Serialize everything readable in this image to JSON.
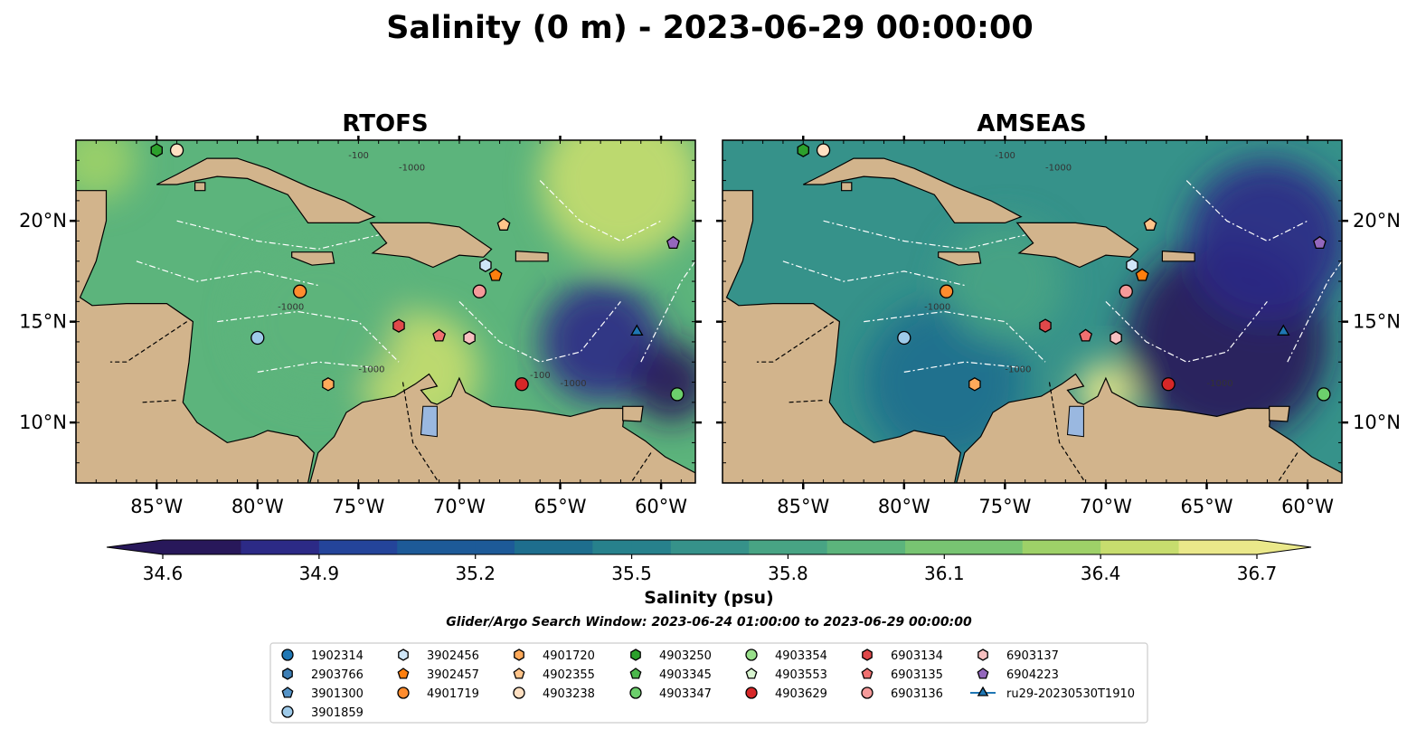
{
  "figure": {
    "title": "Salinity (0 m) - 2023-06-29 00:00:00",
    "search_window": "Glider/Argo Search Window: 2023-06-24 01:00:00 to 2023-06-29 00:00:00"
  },
  "colors": {
    "land": "#d2b48c",
    "water_bg": "#9ab8e0",
    "river": "#9fb0c8",
    "ramp": [
      "#28185a",
      "#2c2a86",
      "#24449a",
      "#1d5a98",
      "#1e6e8e",
      "#27818c",
      "#36928a",
      "#48a484",
      "#5cb47c",
      "#78c472",
      "#9ed168",
      "#c7dd6e",
      "#eae88a"
    ]
  },
  "chart_data": [
    {
      "type": "heatmap",
      "title": "RTOFS",
      "xlim": [
        -89,
        -58.3
      ],
      "ylim": [
        7,
        24
      ],
      "xticks": [
        -85,
        -80,
        -75,
        -70,
        -65,
        -60
      ],
      "xtick_labels": [
        "85°W",
        "80°W",
        "75°W",
        "70°W",
        "65°W",
        "60°W"
      ],
      "yticks": [
        10,
        15,
        20
      ],
      "ytick_labels": [
        "10°N",
        "15°N",
        "20°N"
      ],
      "ytick_side": "left",
      "contour_labels": [
        "-100",
        "-1000",
        "-1000",
        "-1000",
        "-1000",
        "-100"
      ],
      "field_features": [
        {
          "lon": -88,
          "lat": 23,
          "r": 2.0,
          "value": 36.3
        },
        {
          "lon": -62,
          "lat": 22,
          "r": 4.0,
          "value": 36.5
        },
        {
          "lon": -72,
          "lat": 12.5,
          "r": 3.0,
          "value": 36.5
        },
        {
          "lon": -63,
          "lat": 14,
          "r": 3.0,
          "value": 34.9
        },
        {
          "lon": -59.5,
          "lat": 12,
          "r": 2.0,
          "value": 34.7
        },
        {
          "lon": -77,
          "lat": 15,
          "r": 4.0,
          "value": 36.0
        }
      ],
      "field_base": 35.9
    },
    {
      "type": "heatmap",
      "title": "AMSEAS",
      "xlim": [
        -89,
        -58.3
      ],
      "ylim": [
        7,
        24
      ],
      "xticks": [
        -85,
        -80,
        -75,
        -70,
        -65,
        -60
      ],
      "xtick_labels": [
        "85°W",
        "80°W",
        "75°W",
        "70°W",
        "65°W",
        "60°W"
      ],
      "yticks": [
        10,
        15,
        20
      ],
      "ytick_labels": [
        "10°N",
        "15°N",
        "20°N"
      ],
      "ytick_side": "right",
      "contour_labels": [
        "-100",
        "-1000",
        "-1000",
        "-1000",
        "-1000"
      ],
      "field_features": [
        {
          "lon": -64,
          "lat": 14,
          "r": 5.0,
          "value": 34.6
        },
        {
          "lon": -62,
          "lat": 19,
          "r": 4.0,
          "value": 34.9
        },
        {
          "lon": -78,
          "lat": 12,
          "r": 4.0,
          "value": 35.3
        },
        {
          "lon": -70,
          "lat": 11.5,
          "r": 1.5,
          "value": 36.6
        },
        {
          "lon": -75,
          "lat": 17,
          "r": 3.0,
          "value": 35.8
        }
      ],
      "field_base": 35.6
    }
  ],
  "colorbar": {
    "label": "Salinity (psu)",
    "min": 34.6,
    "max": 36.7,
    "ticks": [
      34.6,
      34.9,
      35.2,
      35.5,
      35.8,
      36.1,
      36.4,
      36.7
    ],
    "tick_labels": [
      "34.6",
      "34.9",
      "35.2",
      "35.5",
      "35.8",
      "36.1",
      "36.4",
      "36.7"
    ],
    "extend": "both"
  },
  "legend": {
    "placement": "bottom-center",
    "columns": 7,
    "entries": [
      {
        "label": "1902314",
        "marker": "circle",
        "color": "#1f77b4",
        "lon": null,
        "lat": null
      },
      {
        "label": "2903766",
        "marker": "hexagon",
        "color": "#3d7fb6",
        "lon": null,
        "lat": null
      },
      {
        "label": "3901300",
        "marker": "pentagon",
        "color": "#5594c8",
        "lon": null,
        "lat": null
      },
      {
        "label": "3901859",
        "marker": "circle",
        "color": "#9ecae9",
        "lon": -80,
        "lat": 14.2
      },
      {
        "label": "3902456",
        "marker": "hexagon",
        "color": "#cfe6f8",
        "lon": -68.7,
        "lat": 17.8
      },
      {
        "label": "3902457",
        "marker": "pentagon",
        "color": "#ff7f0e",
        "lon": -68.2,
        "lat": 17.3
      },
      {
        "label": "4901719",
        "marker": "circle",
        "color": "#ff8c2e",
        "lon": -77.9,
        "lat": 16.5
      },
      {
        "label": "4901720",
        "marker": "hexagon",
        "color": "#ffaa5a",
        "lon": -76.5,
        "lat": 11.9
      },
      {
        "label": "4902355",
        "marker": "pentagon",
        "color": "#ffc48a",
        "lon": -67.8,
        "lat": 19.8
      },
      {
        "label": "4903238",
        "marker": "circle",
        "color": "#ffe0c2",
        "lon": -84,
        "lat": 23.5
      },
      {
        "label": "4903250",
        "marker": "hexagon",
        "color": "#2ca02c",
        "lon": -85,
        "lat": 23.5
      },
      {
        "label": "4903345",
        "marker": "pentagon",
        "color": "#4cb84c",
        "lon": null,
        "lat": null
      },
      {
        "label": "4903347",
        "marker": "circle",
        "color": "#6ccf6c",
        "lon": -59.2,
        "lat": 11.4
      },
      {
        "label": "4903354",
        "marker": "circle",
        "color": "#98df8a",
        "lon": null,
        "lat": null
      },
      {
        "label": "4903553",
        "marker": "pentagon",
        "color": "#d8f5d0",
        "lon": null,
        "lat": null
      },
      {
        "label": "4903629",
        "marker": "circle",
        "color": "#d62728",
        "lon": -66.9,
        "lat": 11.9
      },
      {
        "label": "6903134",
        "marker": "hexagon",
        "color": "#e0484a",
        "lon": -73.0,
        "lat": 14.8
      },
      {
        "label": "6903135",
        "marker": "pentagon",
        "color": "#f07070",
        "lon": -71.0,
        "lat": 14.3
      },
      {
        "label": "6903136",
        "marker": "circle",
        "color": "#f59a9a",
        "lon": -69.0,
        "lat": 16.5
      },
      {
        "label": "6903137",
        "marker": "hexagon",
        "color": "#f7c0c0",
        "lon": -69.5,
        "lat": 14.2
      },
      {
        "label": "6904223",
        "marker": "pentagon",
        "color": "#9467bd",
        "lon": -59.4,
        "lat": 18.9
      },
      {
        "label": "ru29-20230530T1910",
        "marker": "triangle",
        "color": "#1f77b4",
        "lon": -61.2,
        "lat": 14.5
      }
    ]
  }
}
